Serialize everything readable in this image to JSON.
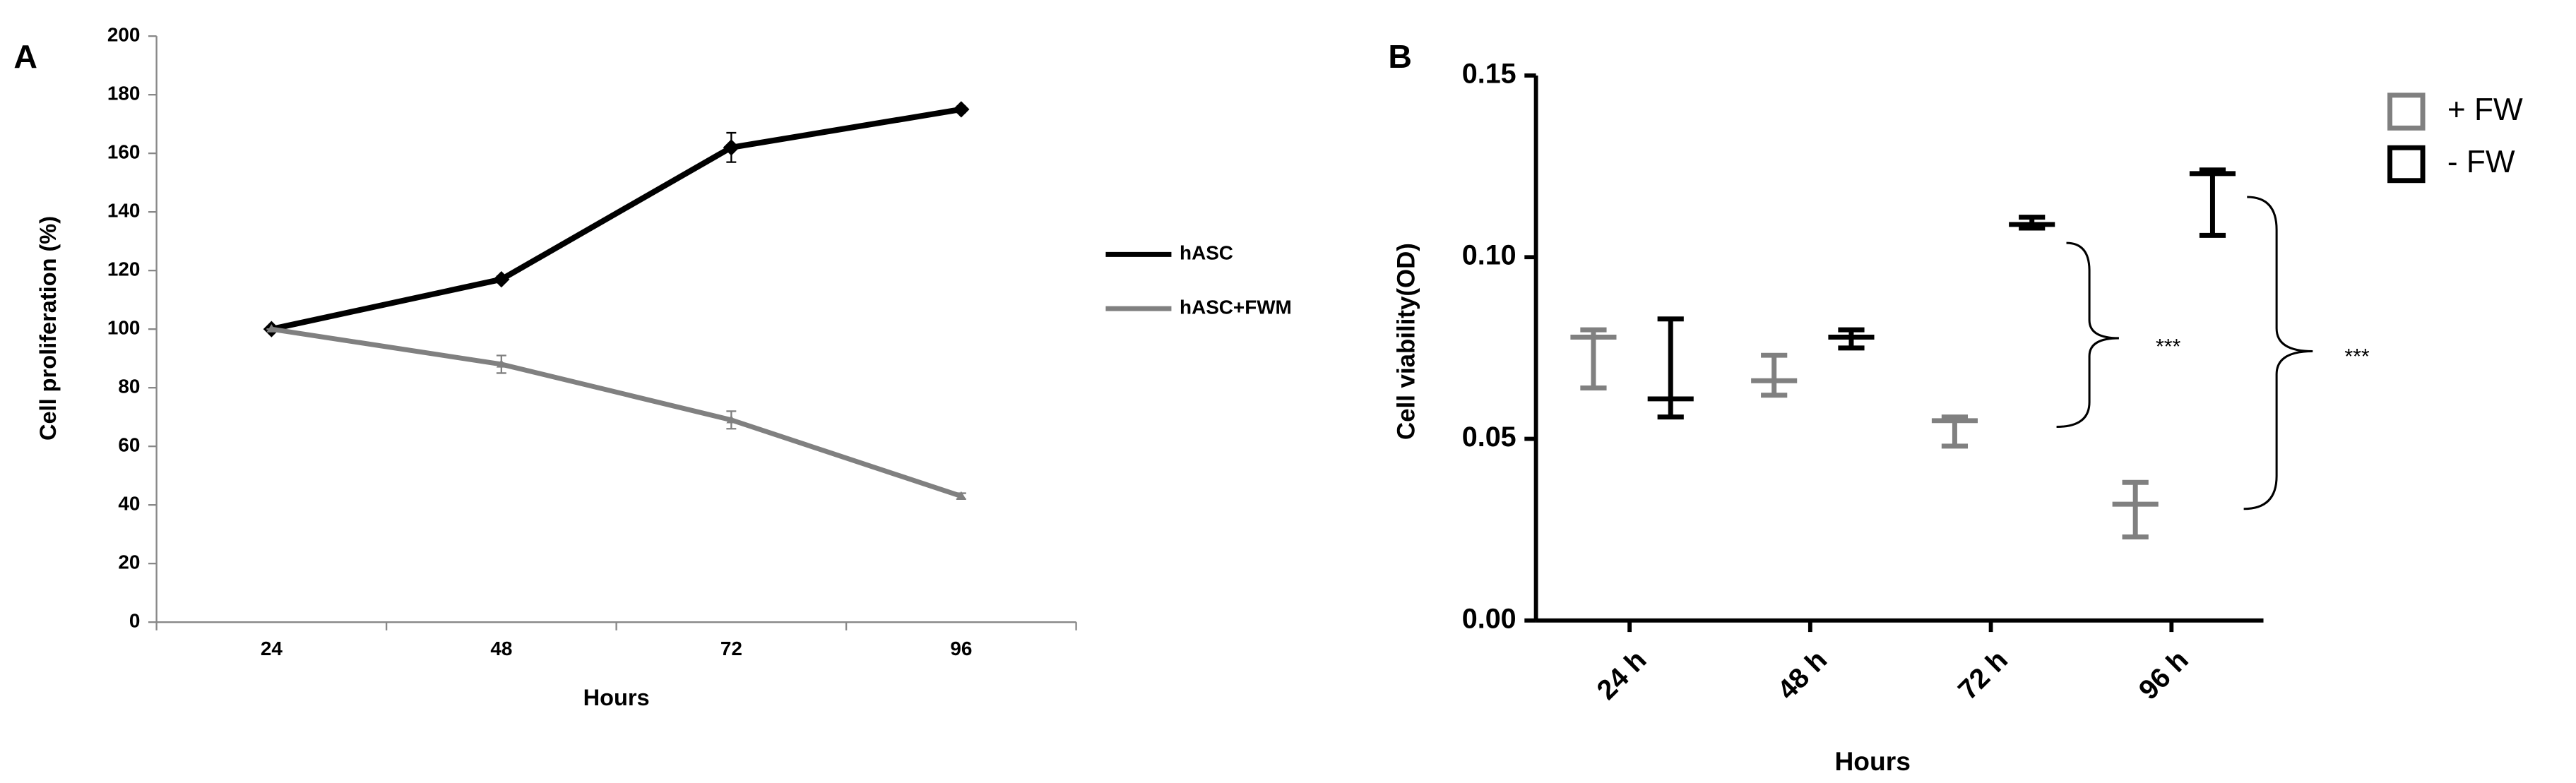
{
  "chart_data": [
    {
      "type": "line",
      "panel_label": "A",
      "x_label": "Hours",
      "y_label": "Cell proliferation (%)",
      "categories": [
        "24",
        "48",
        "72",
        "96"
      ],
      "series": [
        {
          "name": "hASC",
          "color": "#000000",
          "marker": "diamond",
          "values": [
            100,
            117,
            162,
            175
          ],
          "errors": [
            0,
            1,
            5,
            1
          ]
        },
        {
          "name": "hASC+FWM",
          "color": "#808080",
          "marker": "triangle",
          "values": [
            100,
            88,
            69,
            43
          ],
          "errors": [
            0,
            3,
            3,
            1
          ]
        }
      ],
      "ylim": [
        0,
        200
      ],
      "yticks": [
        0,
        20,
        40,
        60,
        80,
        100,
        120,
        140,
        160,
        180,
        200
      ],
      "legend": "right"
    },
    {
      "type": "errorbar",
      "panel_label": "B",
      "x_label": "Hours",
      "y_label": "Cell viability(OD)",
      "categories": [
        "24 h",
        "48 h",
        "72 h",
        "96 h"
      ],
      "series": [
        {
          "name": "+ FW",
          "color": "#808080",
          "values": [
            0.078,
            0.066,
            0.055,
            0.032
          ],
          "upper": [
            0.08,
            0.073,
            0.056,
            0.038
          ],
          "lower": [
            0.064,
            0.062,
            0.048,
            0.023
          ]
        },
        {
          "name": "- FW",
          "color": "#000000",
          "values": [
            0.061,
            0.078,
            0.109,
            0.123
          ],
          "upper": [
            0.083,
            0.08,
            0.111,
            0.124
          ],
          "lower": [
            0.056,
            0.075,
            0.108,
            0.106
          ]
        }
      ],
      "ylim": [
        0,
        0.15
      ],
      "yticks": [
        {
          "value": 0,
          "label": "0.00"
        },
        0.05,
        {
          "value": 0.1,
          "label": "0.10"
        },
        0.15
      ],
      "annotations": [
        "***",
        "***"
      ],
      "legend": "upper right"
    }
  ]
}
